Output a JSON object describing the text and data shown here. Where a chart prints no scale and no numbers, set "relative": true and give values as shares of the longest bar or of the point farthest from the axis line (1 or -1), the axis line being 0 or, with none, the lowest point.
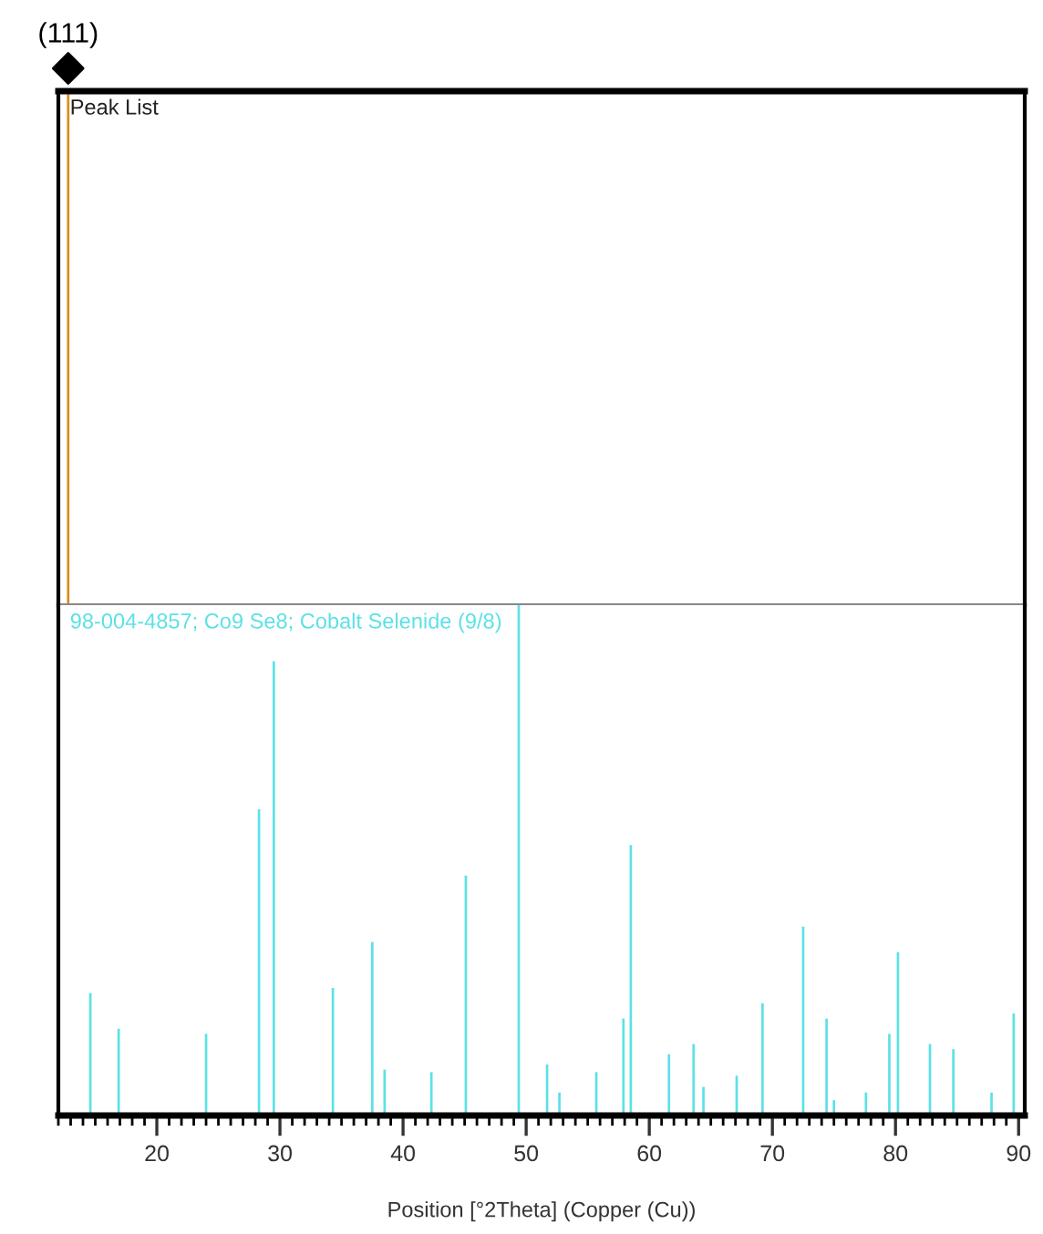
{
  "chart_data": [
    {
      "type": "bar",
      "title": "Peak List",
      "relative": true,
      "xlim": [
        12,
        90.5
      ],
      "tick_labels": false,
      "marker": "diamond",
      "series": [
        {
          "color": "#d98c1a",
          "x": [
            12.8
          ],
          "values": [
            1
          ]
        }
      ],
      "annotations": [
        {
          "text": "(111)",
          "x": 12.8,
          "y": 1
        }
      ]
    },
    {
      "type": "bar",
      "title": "98-004-4857; Co9 Se8; Cobalt Selenide (9/8)",
      "relative": true,
      "xlim": [
        12,
        90.5
      ],
      "xticks": [
        20,
        30,
        40,
        50,
        60,
        70,
        80,
        90
      ],
      "tick_labels": "x",
      "xlabel": "Position [°2Theta] (Copper (Cu))",
      "series": [
        {
          "color": "#5ce1e6",
          "x": [
            14.6,
            16.9,
            24.0,
            28.3,
            29.5,
            34.3,
            37.5,
            38.5,
            42.3,
            45.1,
            49.4,
            51.7,
            52.7,
            55.7,
            57.9,
            58.5,
            61.6,
            63.6,
            64.4,
            67.1,
            69.2,
            72.5,
            74.4,
            75.0,
            77.6,
            79.5,
            80.2,
            82.8,
            84.7,
            87.8,
            89.6
          ],
          "values": [
            0.24,
            0.17,
            0.16,
            0.6,
            0.89,
            0.25,
            0.34,
            0.09,
            0.085,
            0.47,
            1,
            0.1,
            0.045,
            0.085,
            0.19,
            0.53,
            0.12,
            0.14,
            0.056,
            0.078,
            0.22,
            0.37,
            0.19,
            0.03,
            0.045,
            0.16,
            0.32,
            0.14,
            0.13,
            0.045,
            0.2
          ]
        }
      ]
    }
  ]
}
